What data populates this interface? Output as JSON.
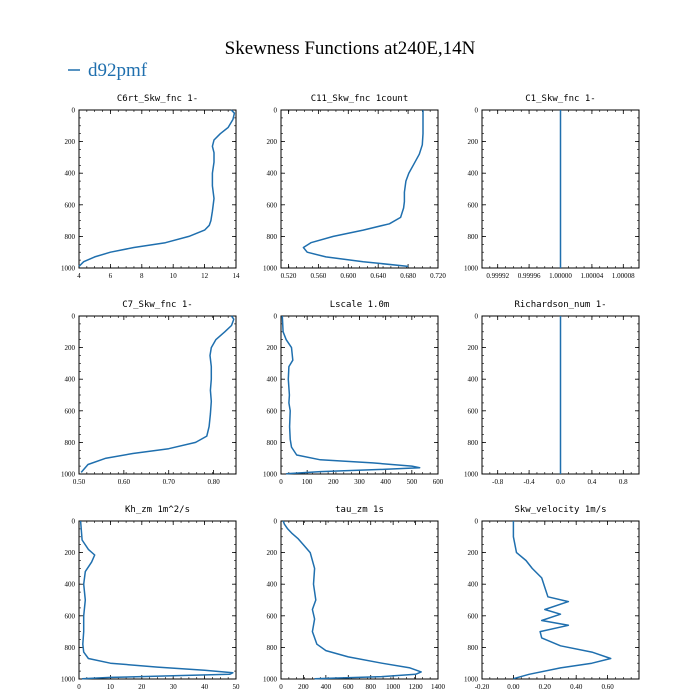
{
  "title": "Skewness Functions at240E,14N",
  "legend": {
    "label": "d92pmf",
    "color": "#1f6fae"
  },
  "line_color": "#1f6fae",
  "chart_data": [
    {
      "type": "line",
      "title": "C6rt_Skw_fnc   1-",
      "xlim": [
        4,
        14
      ],
      "ylim": [
        1000,
        0
      ],
      "xticks": [
        "4",
        "6",
        "8",
        "10",
        "12",
        "14"
      ],
      "xtick_values": [
        4,
        6,
        8,
        10,
        12,
        14
      ],
      "yticks": [
        "0",
        "200",
        "400",
        "600",
        "800",
        "1000"
      ],
      "ytick_values": [
        0,
        200,
        400,
        600,
        800,
        1000
      ],
      "series": [
        {
          "name": "d92pmf",
          "x": [
            13.7,
            13.9,
            13.8,
            13.5,
            13.0,
            12.6,
            12.5,
            12.6,
            12.6,
            12.5,
            12.5,
            12.6,
            12.5,
            12.4,
            12.3,
            12.0,
            11.0,
            9.5,
            7.5,
            6.0,
            5.0,
            4.3,
            4.0
          ],
          "y": [
            0,
            20,
            60,
            110,
            150,
            190,
            230,
            270,
            330,
            400,
            480,
            560,
            640,
            700,
            730,
            760,
            800,
            840,
            870,
            900,
            930,
            960,
            990
          ]
        }
      ]
    },
    {
      "type": "line",
      "title": "C11_Skw_fnc   1count",
      "xlim": [
        0.51,
        0.72
      ],
      "ylim": [
        1000,
        0
      ],
      "xticks": [
        "0.520",
        "0.560",
        "0.600",
        "0.640",
        "0.680",
        "0.720"
      ],
      "xtick_values": [
        0.52,
        0.56,
        0.6,
        0.64,
        0.68,
        0.72
      ],
      "yticks": [
        "0",
        "200",
        "400",
        "600",
        "800",
        "1000"
      ],
      "ytick_values": [
        0,
        200,
        400,
        600,
        800,
        1000
      ],
      "series": [
        {
          "name": "d92pmf",
          "x": [
            0.7,
            0.7,
            0.7,
            0.699,
            0.695,
            0.688,
            0.681,
            0.677,
            0.675,
            0.675,
            0.674,
            0.67,
            0.655,
            0.62,
            0.58,
            0.55,
            0.54,
            0.545,
            0.57,
            0.62,
            0.68
          ],
          "y": [
            0,
            50,
            150,
            220,
            280,
            340,
            400,
            450,
            520,
            580,
            620,
            680,
            720,
            760,
            800,
            840,
            870,
            900,
            930,
            960,
            990
          ]
        }
      ]
    },
    {
      "type": "line",
      "title": "C1_Skw_fnc   1-",
      "xlim": [
        0.9999,
        1.0001
      ],
      "ylim": [
        1000,
        0
      ],
      "xticks": [
        "0.99992",
        "0.99996",
        "1.00000",
        "1.00004",
        "1.00008"
      ],
      "xtick_values": [
        0.99992,
        0.99996,
        1.0,
        1.00004,
        1.00008
      ],
      "yticks": [
        "0",
        "200",
        "400",
        "600",
        "800",
        "1000"
      ],
      "ytick_values": [
        0,
        200,
        400,
        600,
        800,
        1000
      ],
      "series": [
        {
          "name": "d92pmf",
          "x": [
            1.0,
            1.0
          ],
          "y": [
            0,
            1000
          ]
        }
      ]
    },
    {
      "type": "line",
      "title": "C7_Skw_fnc   1-",
      "xlim": [
        0.5,
        0.85
      ],
      "ylim": [
        1000,
        0
      ],
      "xticks": [
        "0.50",
        "0.60",
        "0.70",
        "0.80"
      ],
      "xtick_values": [
        0.5,
        0.6,
        0.7,
        0.8
      ],
      "yticks": [
        "0",
        "200",
        "400",
        "600",
        "800",
        "1000"
      ],
      "ytick_values": [
        0,
        200,
        400,
        600,
        800,
        1000
      ],
      "series": [
        {
          "name": "d92pmf",
          "x": [
            0.84,
            0.845,
            0.84,
            0.825,
            0.805,
            0.795,
            0.792,
            0.795,
            0.795,
            0.793,
            0.795,
            0.793,
            0.79,
            0.785,
            0.76,
            0.7,
            0.62,
            0.56,
            0.52,
            0.505
          ],
          "y": [
            0,
            20,
            60,
            100,
            150,
            200,
            250,
            320,
            400,
            470,
            540,
            620,
            700,
            760,
            800,
            840,
            870,
            900,
            940,
            990
          ]
        }
      ]
    },
    {
      "type": "line",
      "title": "Lscale   1.0m",
      "xlim": [
        0,
        600
      ],
      "ylim": [
        1000,
        0
      ],
      "xticks": [
        "0",
        "100",
        "200",
        "300",
        "400",
        "500",
        "600"
      ],
      "xtick_values": [
        0,
        100,
        200,
        300,
        400,
        500,
        600
      ],
      "yticks": [
        "0",
        "200",
        "400",
        "600",
        "800",
        "1000"
      ],
      "ytick_values": [
        0,
        200,
        400,
        600,
        800,
        1000
      ],
      "series": [
        {
          "name": "d92pmf",
          "x": [
            5,
            8,
            20,
            40,
            45,
            30,
            28,
            32,
            30,
            35,
            33,
            35,
            40,
            60,
            150,
            350,
            500,
            530,
            400,
            150,
            20
          ],
          "y": [
            0,
            100,
            150,
            200,
            280,
            320,
            400,
            500,
            550,
            600,
            700,
            780,
            830,
            880,
            910,
            930,
            950,
            960,
            970,
            985,
            998
          ]
        }
      ]
    },
    {
      "type": "line",
      "title": "Richardson_num   1-",
      "xlim": [
        -1,
        1
      ],
      "ylim": [
        1000,
        0
      ],
      "xticks": [
        "-0.8",
        "-0.4",
        "0.0",
        "0.4",
        "0.8"
      ],
      "xtick_values": [
        -0.8,
        -0.4,
        0.0,
        0.4,
        0.8
      ],
      "yticks": [
        "0",
        "200",
        "400",
        "600",
        "800",
        "1000"
      ],
      "ytick_values": [
        0,
        200,
        400,
        600,
        800,
        1000
      ],
      "series": [
        {
          "name": "d92pmf",
          "x": [
            0,
            0
          ],
          "y": [
            0,
            1000
          ]
        }
      ]
    },
    {
      "type": "line",
      "title": "Kh_zm   1m^2/s",
      "xlim": [
        0,
        50
      ],
      "ylim": [
        1000,
        0
      ],
      "xticks": [
        "0",
        "10",
        "20",
        "30",
        "40",
        "50"
      ],
      "xtick_values": [
        0,
        10,
        20,
        30,
        40,
        50
      ],
      "yticks": [
        "0",
        "200",
        "400",
        "600",
        "800",
        "1000"
      ],
      "ytick_values": [
        0,
        200,
        400,
        600,
        800,
        1000
      ],
      "series": [
        {
          "name": "d92pmf",
          "x": [
            0.5,
            1,
            3,
            5,
            4,
            2,
            1.5,
            2,
            1.5,
            1.5,
            1.2,
            1.5,
            3,
            10,
            25,
            40,
            49,
            48,
            30,
            10,
            1
          ],
          "y": [
            0,
            120,
            180,
            215,
            260,
            320,
            400,
            500,
            600,
            700,
            780,
            830,
            870,
            900,
            925,
            945,
            960,
            970,
            980,
            990,
            998
          ]
        }
      ]
    },
    {
      "type": "line",
      "title": "tau_zm   1s",
      "xlim": [
        0,
        1400
      ],
      "ylim": [
        1000,
        0
      ],
      "xticks": [
        "0",
        "200",
        "400",
        "600",
        "800",
        "1000",
        "1200",
        "1400"
      ],
      "xtick_values": [
        0,
        200,
        400,
        600,
        800,
        1000,
        1200,
        1400
      ],
      "yticks": [
        "0",
        "200",
        "400",
        "600",
        "800",
        "1000"
      ],
      "ytick_values": [
        0,
        200,
        400,
        600,
        800,
        1000
      ],
      "series": [
        {
          "name": "d92pmf",
          "x": [
            20,
            30,
            60,
            100,
            150,
            200,
            260,
            300,
            290,
            310,
            280,
            300,
            280,
            320,
            400,
            600,
            900,
            1150,
            1250,
            1200,
            900,
            300
          ],
          "y": [
            0,
            20,
            50,
            80,
            110,
            150,
            200,
            300,
            400,
            500,
            560,
            620,
            700,
            780,
            820,
            860,
            900,
            930,
            955,
            970,
            985,
            998
          ]
        }
      ]
    },
    {
      "type": "line",
      "title": "Skw_velocity   1m/s",
      "xlim": [
        -0.2,
        0.8
      ],
      "ylim": [
        1000,
        0
      ],
      "xticks": [
        "-0.20",
        "0.00",
        "0.20",
        "0.40",
        "0.60"
      ],
      "xtick_values": [
        -0.2,
        0.0,
        0.2,
        0.4,
        0.6
      ],
      "yticks": [
        "0",
        "200",
        "400",
        "600",
        "800",
        "1000"
      ],
      "ytick_values": [
        0,
        200,
        400,
        600,
        800,
        1000
      ],
      "series": [
        {
          "name": "d92pmf",
          "x": [
            0.0,
            0.0,
            0.02,
            0.08,
            0.12,
            0.18,
            0.2,
            0.22,
            0.35,
            0.2,
            0.3,
            0.18,
            0.35,
            0.17,
            0.18,
            0.3,
            0.5,
            0.62,
            0.5,
            0.3,
            0.1,
            0.0
          ],
          "y": [
            0,
            100,
            200,
            250,
            300,
            360,
            420,
            480,
            510,
            560,
            590,
            630,
            660,
            700,
            740,
            790,
            830,
            870,
            900,
            930,
            970,
            998
          ]
        }
      ]
    }
  ]
}
